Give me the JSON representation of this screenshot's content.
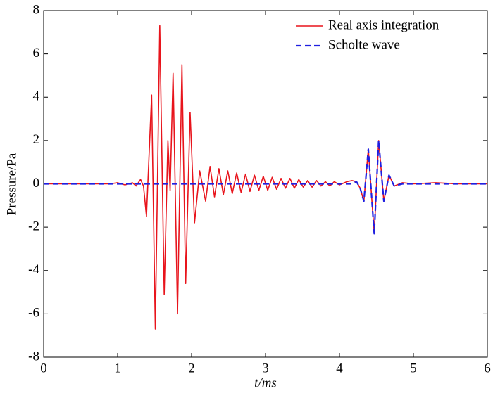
{
  "chart_data": {
    "type": "line",
    "xlabel": "t/ms",
    "ylabel": "Pressure/Pa",
    "xlim": [
      0,
      6
    ],
    "xticks": [
      0,
      1,
      2,
      3,
      4,
      5,
      6
    ],
    "ylim": [
      -8,
      8
    ],
    "yticks": [
      -8,
      -6,
      -4,
      -2,
      0,
      2,
      4,
      6,
      8
    ],
    "legend": "upper right",
    "series": [
      {
        "name": "Real axis integration",
        "color": "#e8141c",
        "dash": "solid",
        "x": [
          0,
          0.3,
          0.6,
          0.9,
          1.0,
          1.1,
          1.2,
          1.25,
          1.31,
          1.35,
          1.39,
          1.46,
          1.51,
          1.57,
          1.63,
          1.68,
          1.71,
          1.75,
          1.81,
          1.87,
          1.92,
          1.98,
          2.04,
          2.11,
          2.19,
          2.25,
          2.31,
          2.37,
          2.43,
          2.49,
          2.55,
          2.61,
          2.67,
          2.73,
          2.79,
          2.85,
          2.91,
          2.97,
          3.03,
          3.09,
          3.15,
          3.21,
          3.27,
          3.33,
          3.39,
          3.45,
          3.51,
          3.57,
          3.63,
          3.69,
          3.75,
          3.81,
          3.87,
          3.93,
          4.0,
          4.1,
          4.17,
          4.23,
          4.28,
          4.33,
          4.39,
          4.47,
          4.53,
          4.6,
          4.67,
          4.74,
          4.85,
          5.0,
          5.3,
          5.6,
          6.0
        ],
        "values": [
          0,
          0,
          0,
          0,
          0.05,
          -0.05,
          0.05,
          -0.1,
          0.2,
          -0.1,
          -1.5,
          4.1,
          -6.7,
          7.3,
          -5.1,
          2.0,
          -0.3,
          5.1,
          -6.0,
          5.5,
          -4.6,
          3.3,
          -1.8,
          0.6,
          -0.8,
          0.8,
          -0.6,
          0.7,
          -0.5,
          0.6,
          -0.45,
          0.5,
          -0.4,
          0.45,
          -0.35,
          0.4,
          -0.3,
          0.35,
          -0.3,
          0.3,
          -0.25,
          0.25,
          -0.2,
          0.25,
          -0.2,
          0.2,
          -0.15,
          0.15,
          -0.15,
          0.15,
          -0.1,
          0.1,
          -0.1,
          0.1,
          -0.05,
          0.1,
          0.15,
          0.1,
          -0.2,
          -0.8,
          1.6,
          -2.3,
          2.0,
          -0.8,
          0.4,
          -0.1,
          0.05,
          0,
          0.05,
          0,
          0
        ]
      },
      {
        "name": "Scholte wave",
        "color": "#1f1fe0",
        "dash": "dashed",
        "x": [
          0,
          1,
          2,
          3,
          4,
          4.17,
          4.23,
          4.28,
          4.33,
          4.39,
          4.47,
          4.53,
          4.6,
          4.67,
          4.74,
          4.85,
          5,
          6
        ],
        "values": [
          0,
          0,
          0,
          0,
          0,
          0,
          0.1,
          -0.2,
          -0.8,
          1.6,
          -2.3,
          2.0,
          -0.8,
          0.4,
          -0.1,
          0,
          0,
          0
        ]
      }
    ]
  }
}
